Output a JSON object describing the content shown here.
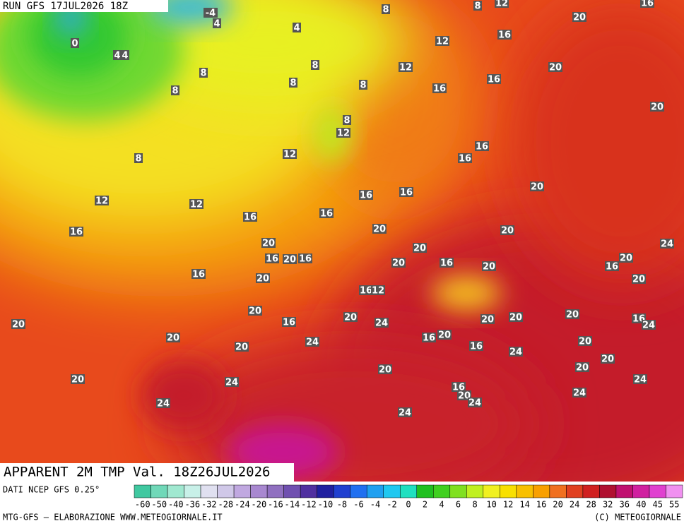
{
  "header": {
    "run": "RUN GFS 17JUL2026 18Z"
  },
  "map": {
    "labels": [
      "-4",
      "4",
      "8",
      "8",
      "12",
      "16",
      "20",
      "0",
      "4",
      "4",
      "4",
      "12",
      "16",
      "8",
      "8",
      "12",
      "20",
      "8",
      "8",
      "8",
      "16",
      "16",
      "20",
      "8",
      "12",
      "12",
      "8",
      "16",
      "16",
      "20",
      "12",
      "12",
      "16",
      "16",
      "16",
      "16",
      "16",
      "20",
      "20",
      "20",
      "20",
      "24",
      "16",
      "20",
      "16",
      "16",
      "20",
      "20",
      "20",
      "16",
      "16",
      "20",
      "20",
      "16",
      "12",
      "20",
      "20",
      "16",
      "20",
      "20",
      "20",
      "16",
      "24",
      "24",
      "20",
      "20",
      "24",
      "16",
      "20",
      "20",
      "20",
      "16",
      "24",
      "20",
      "20",
      "20",
      "20",
      "24",
      "24",
      "16",
      "20",
      "24",
      "24",
      "24",
      "24"
    ]
  },
  "title": "APPARENT 2M TMP Val. 18Z26JUL2026",
  "legend": {
    "source": "DATI NCEP GFS 0.25°",
    "ticks": [
      -60,
      -50,
      -40,
      -36,
      -32,
      -28,
      -24,
      -20,
      -16,
      -14,
      -12,
      -10,
      -8,
      -6,
      -4,
      -2,
      0,
      2,
      4,
      6,
      8,
      10,
      12,
      14,
      16,
      20,
      24,
      28,
      32,
      36,
      40,
      45,
      55
    ],
    "colors": [
      "#40c8a0",
      "#70d8b8",
      "#a0e8d0",
      "#c8f0e8",
      "#e0e0f0",
      "#d0c8e8",
      "#c0a8e0",
      "#a888d0",
      "#9070c0",
      "#7050b0",
      "#5030a0",
      "#2020a0",
      "#2040d0",
      "#2070f0",
      "#20a0f0",
      "#20c8f0",
      "#20e0c0",
      "#20c020",
      "#40d020",
      "#80e020",
      "#c0f020",
      "#f0f020",
      "#f8e000",
      "#f8c000",
      "#f8a000",
      "#f07020",
      "#e04020",
      "#d02020",
      "#b01030",
      "#c01070",
      "#d020a0",
      "#e040d0",
      "#f090f0"
    ]
  },
  "footer": {
    "left": "MTG-GFS – ELABORAZIONE WWW.METEOGIORNALE.IT",
    "right": "(C) METEOGIORNALE"
  }
}
